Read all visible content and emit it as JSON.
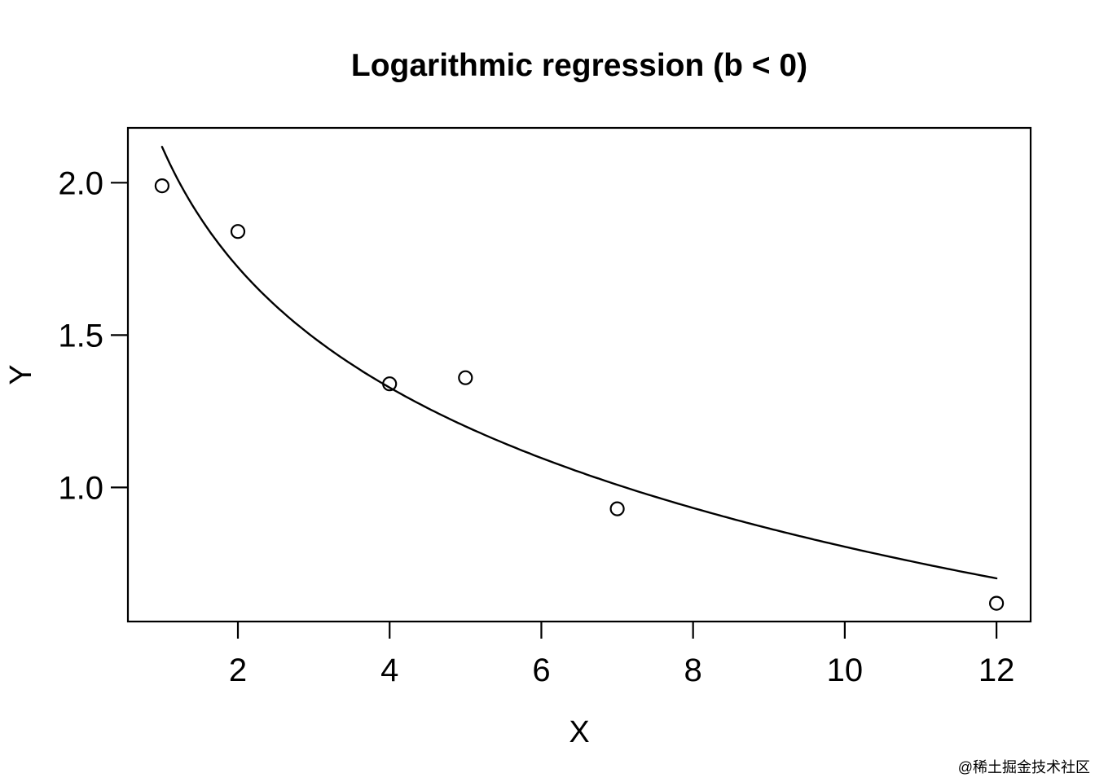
{
  "chart_data": {
    "type": "scatter",
    "title": "Logarithmic regression (b < 0)",
    "xlabel": "X",
    "ylabel": "Y",
    "x": [
      1,
      2,
      4,
      5,
      7,
      12
    ],
    "y": [
      1.99,
      1.84,
      1.34,
      1.36,
      0.93,
      0.62
    ],
    "marker": "open-circle",
    "fit": {
      "model": "y = a + b*ln(x)",
      "a": 2.118,
      "b": -0.57,
      "domain": [
        1,
        12
      ],
      "note": "b < 0"
    },
    "x_axis": {
      "ticks": [
        2,
        4,
        6,
        8,
        10,
        12
      ],
      "labels": [
        "2",
        "4",
        "6",
        "8",
        "10",
        "12"
      ],
      "range": [
        0.55,
        12.45
      ]
    },
    "y_axis": {
      "ticks": [
        1.0,
        1.5,
        2.0
      ],
      "labels": [
        "1.0",
        "1.5",
        "2.0"
      ],
      "range": [
        0.56,
        2.18
      ]
    },
    "grid": false,
    "legend": null,
    "colors": {
      "points": "#000000",
      "curve": "#000000",
      "axis": "#000000",
      "background": "#ffffff"
    }
  },
  "watermark": {
    "text": "@稀土掘金技术社区",
    "color": "#c7c7cb"
  }
}
